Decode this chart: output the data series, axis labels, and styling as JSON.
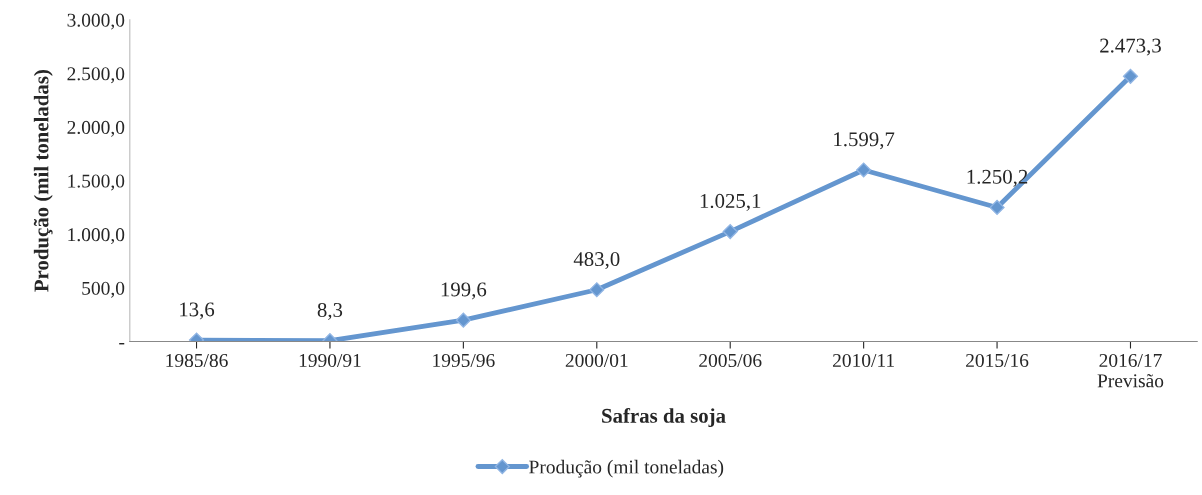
{
  "chart_data": {
    "type": "line",
    "xlabel": "Safras da soja",
    "ylabel": "Produção (mil toneladas)",
    "categories": [
      "1985/86",
      "1990/91",
      "1995/96",
      "2000/01",
      "2005/06",
      "2010/11",
      "2015/16",
      "2016/17\nPrevisão"
    ],
    "series": [
      {
        "name": "Produção (mil toneladas)",
        "color": "#6496cf",
        "values": [
          13.6,
          8.3,
          199.6,
          483.0,
          1025.1,
          1599.7,
          1250.2,
          2473.3
        ],
        "value_labels": [
          "13,6",
          "8,3",
          "199,6",
          "483,0",
          "1.025,1",
          "1.599,7",
          "1.250,2",
          "2.473,3"
        ]
      }
    ],
    "ylim": [
      0,
      3000
    ],
    "yticks": [
      {
        "value": 0,
        "label": "-"
      },
      {
        "value": 500,
        "label": "500,0"
      },
      {
        "value": 1000,
        "label": "1.000,0"
      },
      {
        "value": 1500,
        "label": "1.500,0"
      },
      {
        "value": 2000,
        "label": "2.000,0"
      },
      {
        "value": 2500,
        "label": "2.500,0"
      },
      {
        "value": 3000,
        "label": "3.000,0"
      }
    ],
    "grid": false,
    "legend": "bottom",
    "marker": "diamond",
    "line_style": "solid"
  }
}
